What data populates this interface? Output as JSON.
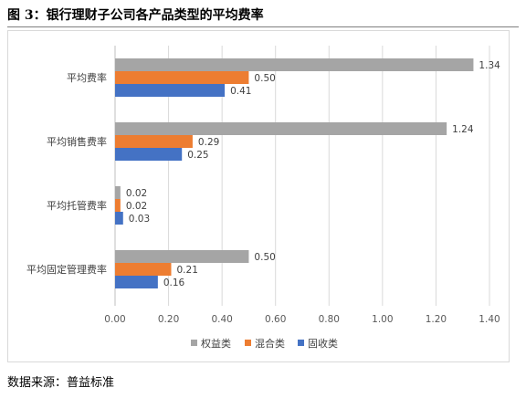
{
  "header": {
    "title": "图 3：银行理财子公司各产品类型的平均费率"
  },
  "footer": {
    "source": "数据来源：普益标准"
  },
  "colors": {
    "gray": "#a5a5a5",
    "orange": "#ed7d31",
    "blue": "#4472c4"
  },
  "chart_data": {
    "type": "bar",
    "orientation": "horizontal",
    "categories": [
      "平均费率",
      "平均销售费率",
      "平均托管费率",
      "平均固定管理费率"
    ],
    "series": [
      {
        "name": "权益类",
        "values": [
          1.34,
          1.24,
          0.02,
          0.5
        ]
      },
      {
        "name": "混合类",
        "values": [
          0.5,
          0.29,
          0.02,
          0.21
        ]
      },
      {
        "name": "固收类",
        "values": [
          0.41,
          0.25,
          0.03,
          0.16
        ]
      }
    ],
    "data_labels": [
      [
        "1.34",
        "1.24",
        "0.02",
        "0.50"
      ],
      [
        "0.50",
        "0.29",
        "0.02",
        "0.21"
      ],
      [
        "0.41",
        "0.25",
        "0.03",
        "0.16"
      ]
    ],
    "xlim": [
      0,
      1.4
    ],
    "xticks": [
      "0.00",
      "0.20",
      "0.40",
      "0.60",
      "0.80",
      "1.00",
      "1.20",
      "1.40"
    ],
    "grid": true,
    "legend_position": "bottom"
  }
}
